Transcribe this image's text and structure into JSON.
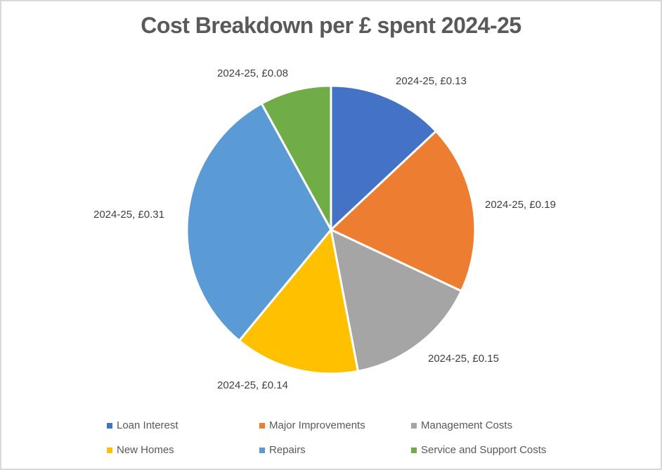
{
  "chart_data": {
    "type": "pie",
    "title": "Cost Breakdown per £ spent 2024-25",
    "series_name": "2024-25",
    "categories": [
      "Loan Interest",
      "Major Improvements",
      "Management Costs",
      "New Homes",
      "Repairs",
      "Service and Support Costs"
    ],
    "values": [
      0.13,
      0.19,
      0.15,
      0.14,
      0.31,
      0.08
    ],
    "value_format": "£0.00",
    "colors": [
      "#4472c4",
      "#ed7d31",
      "#a5a5a5",
      "#ffc000",
      "#5b9bd5",
      "#70ad47"
    ],
    "data_labels": [
      "2024-25, £0.13",
      "2024-25, £0.19",
      "2024-25, £0.15",
      "2024-25, £0.14",
      "2024-25, £0.31",
      "2024-25, £0.08"
    ],
    "start_angle": "12 o'clock",
    "direction": "clockwise",
    "legend_position": "bottom",
    "grid": false
  },
  "legend": {
    "items": [
      {
        "label": "Loan Interest",
        "color": "#4472c4"
      },
      {
        "label": "Major Improvements",
        "color": "#ed7d31"
      },
      {
        "label": "Management Costs",
        "color": "#a5a5a5"
      },
      {
        "label": "New Homes",
        "color": "#ffc000"
      },
      {
        "label": "Repairs",
        "color": "#5b9bd5"
      },
      {
        "label": "Service and Support Costs",
        "color": "#70ad47"
      }
    ]
  }
}
